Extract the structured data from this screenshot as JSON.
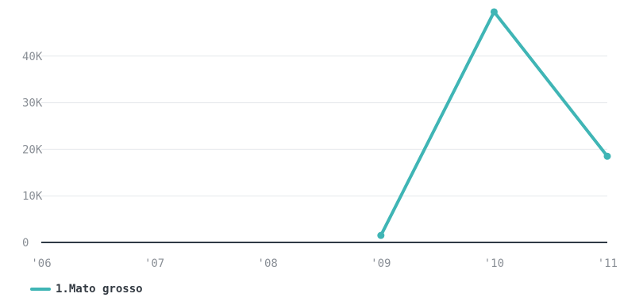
{
  "chart_data": {
    "type": "line",
    "x": [
      "'06",
      "'07",
      "'08",
      "'09",
      "'10",
      "'11"
    ],
    "y_ticks": [
      "0",
      "10K",
      "20K",
      "30K",
      "40K"
    ],
    "ylim": [
      0,
      50000
    ],
    "grid": true,
    "legend_position": "bottom-left",
    "series": [
      {
        "name": "1.Mato grosso",
        "color": "#3fb5b5",
        "values": [
          null,
          null,
          null,
          1500,
          49500,
          18500
        ]
      }
    ]
  }
}
